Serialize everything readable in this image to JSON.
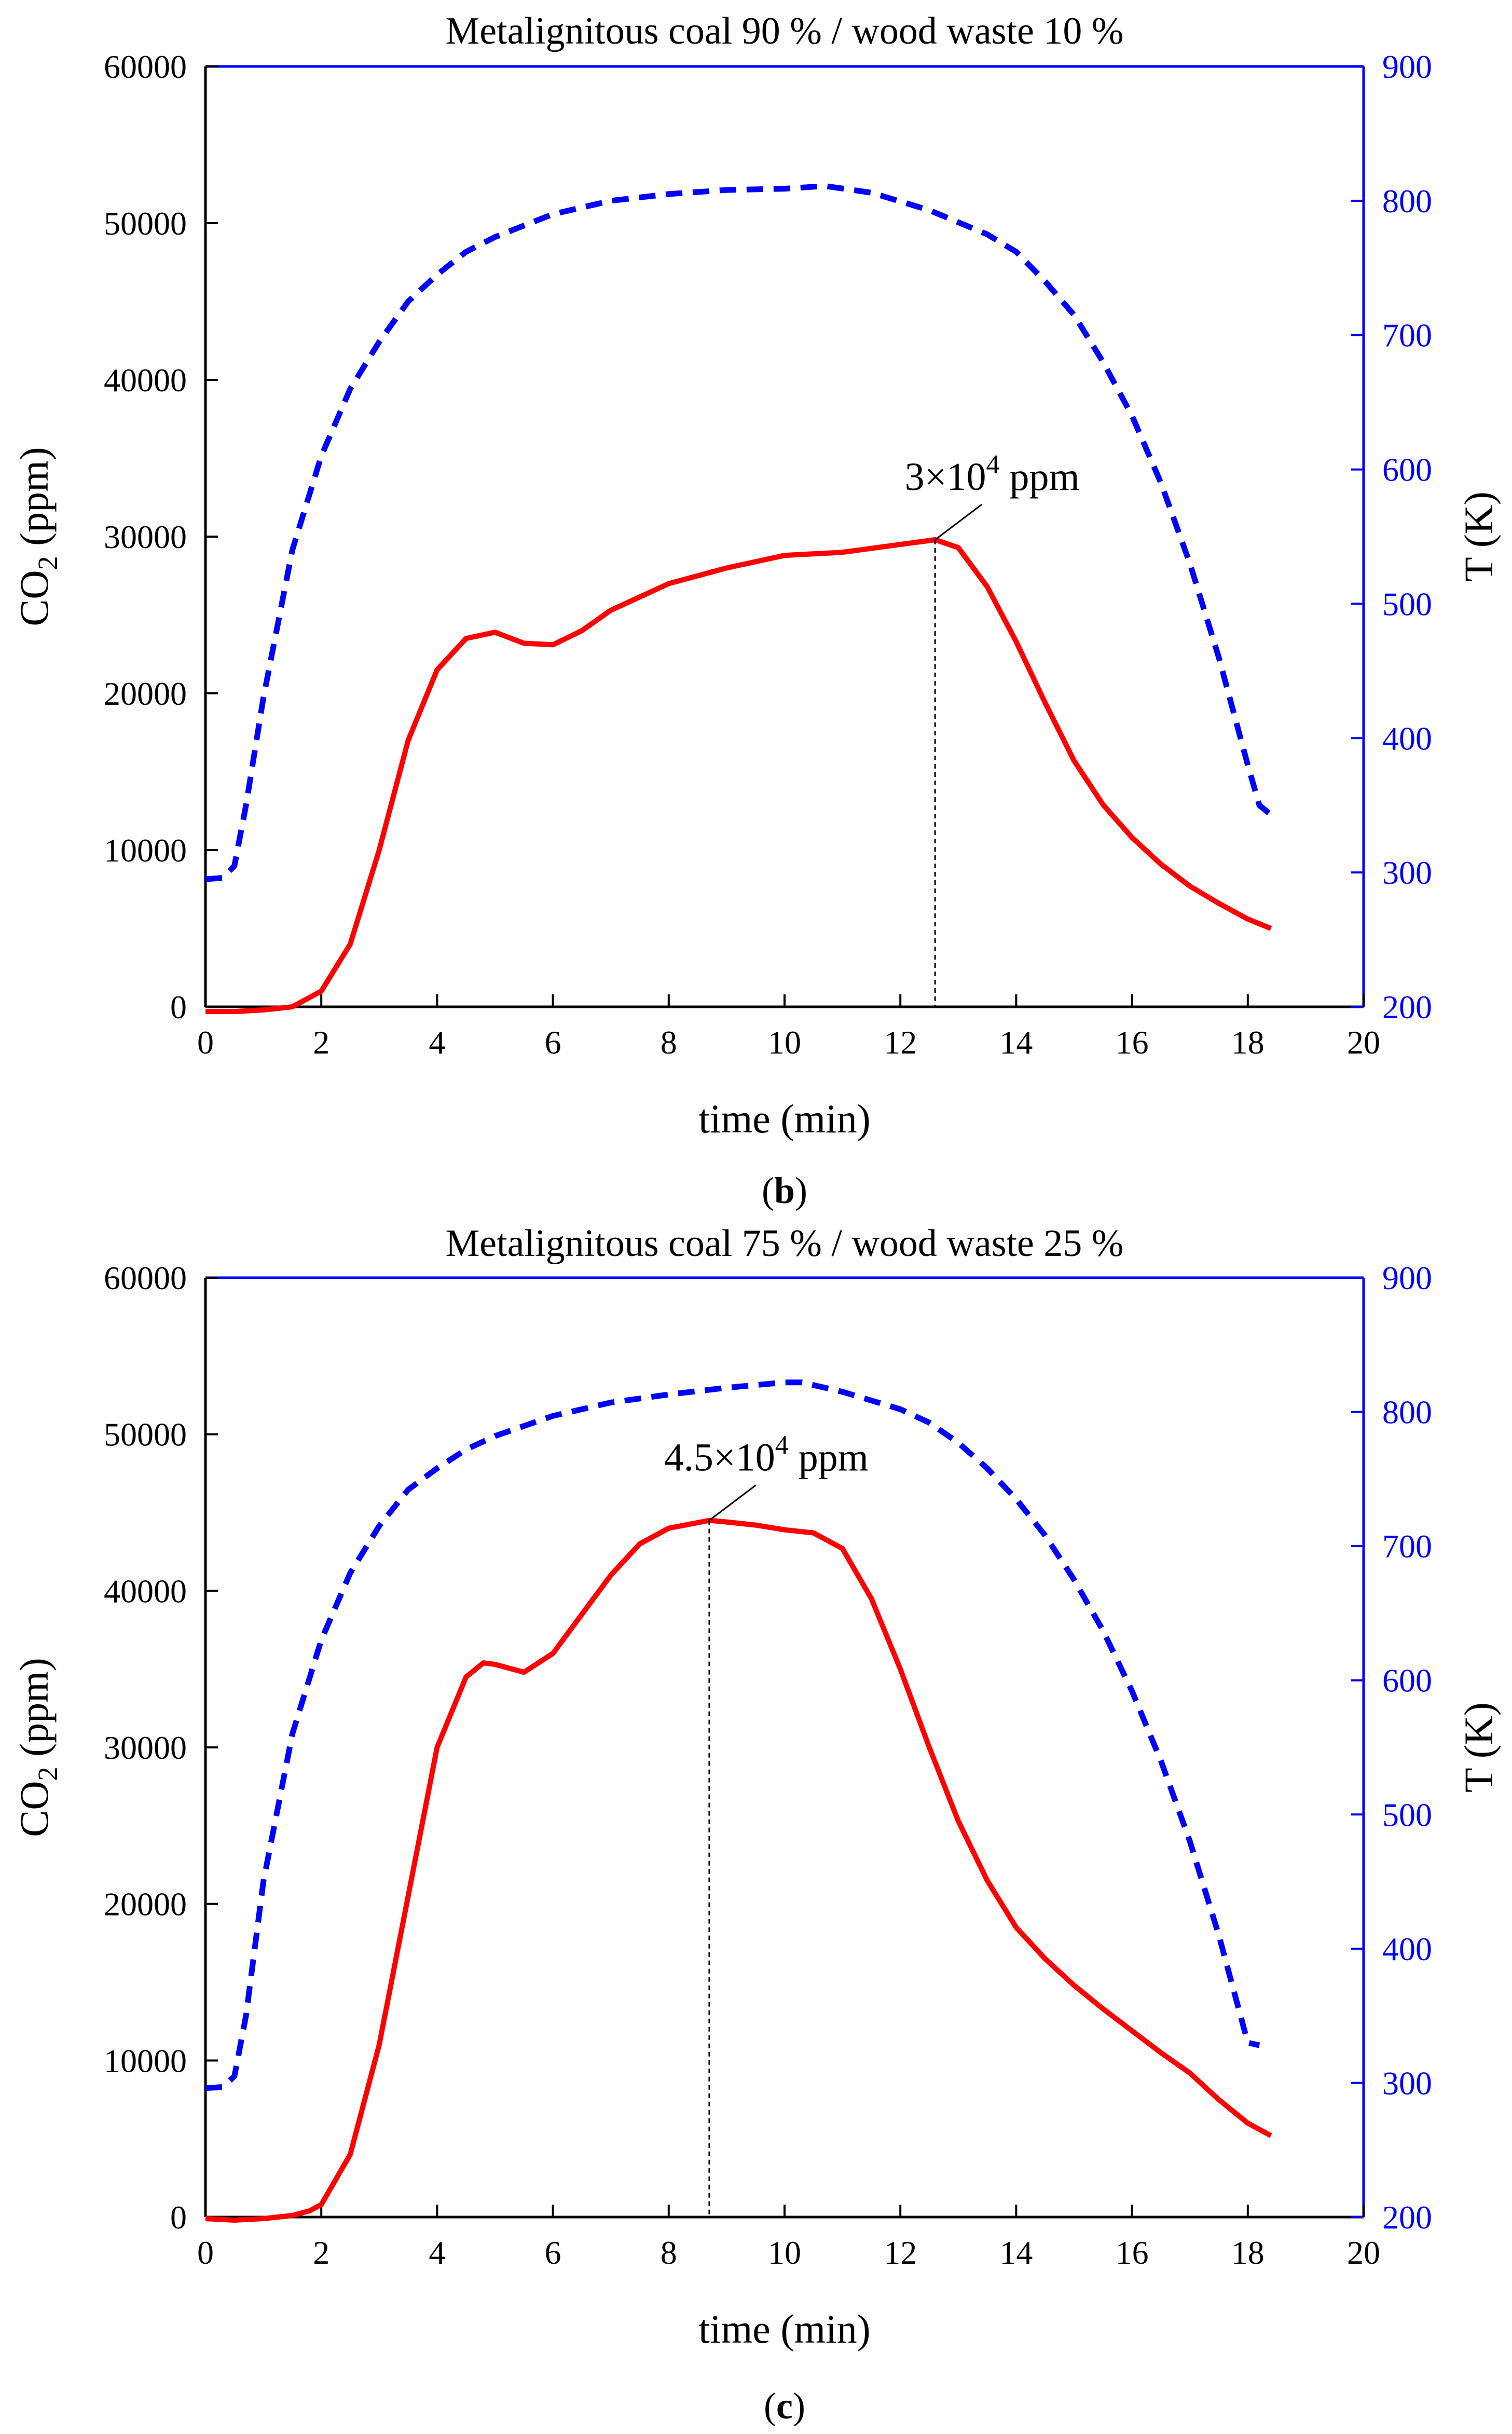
{
  "colors": {
    "co2": "#ff0000",
    "temperature": "#0000ff",
    "axis": "#000000",
    "right_axis": "#0000ff"
  },
  "chart_data": [
    {
      "type": "line",
      "panel_label": "b",
      "title": "Metalignitous coal 90 % / wood waste 10 %",
      "xlabel": "time (min)",
      "ylabel": "CO",
      "ylabel_sub": "2",
      "ylabel_tail": " (ppm)",
      "y2label": "T (K)",
      "xlim": [
        0,
        20
      ],
      "ylim": [
        0,
        60000
      ],
      "y2lim": [
        200,
        900
      ],
      "x_ticks": [
        "0",
        "2",
        "4",
        "6",
        "8",
        "10",
        "12",
        "14",
        "16",
        "18",
        "20"
      ],
      "y_ticks": [
        "0",
        "10000",
        "20000",
        "30000",
        "40000",
        "50000",
        "60000"
      ],
      "y2_ticks": [
        "200",
        "300",
        "400",
        "500",
        "600",
        "700",
        "800",
        "900"
      ],
      "annotation": {
        "base": "3×10",
        "exp": "4",
        "tail": " ppm",
        "x": 12.6,
        "y": 29800
      },
      "series": [
        {
          "axis": "left",
          "style": "solid",
          "x": [
            0,
            0.5,
            1.0,
            1.5,
            2.0,
            2.5,
            3.0,
            3.5,
            4.0,
            4.5,
            5.0,
            5.5,
            6.0,
            6.5,
            7.0,
            8.0,
            9.0,
            10.0,
            11.0,
            12.0,
            12.6,
            13.0,
            13.5,
            14.0,
            14.5,
            15.0,
            15.5,
            16.0,
            16.5,
            17.0,
            17.5,
            18.0,
            18.4
          ],
          "y": [
            -300,
            -300,
            -200,
            0,
            1000,
            4000,
            10000,
            17000,
            21500,
            23500,
            23900,
            23200,
            23100,
            24000,
            25300,
            27000,
            28000,
            28800,
            29000,
            29500,
            29800,
            29300,
            26800,
            23300,
            19400,
            15700,
            12900,
            10800,
            9100,
            7700,
            6600,
            5600,
            5000
          ]
        },
        {
          "axis": "right",
          "style": "dashed",
          "x": [
            0,
            0.3,
            0.5,
            0.7,
            1.0,
            1.5,
            2.0,
            2.5,
            3.0,
            3.5,
            4.0,
            4.5,
            5.0,
            6.0,
            7.0,
            8.0,
            9.0,
            10.0,
            10.7,
            11.5,
            12.5,
            13.5,
            14.0,
            14.5,
            15.0,
            15.5,
            16.0,
            16.5,
            17.0,
            17.5,
            18.0,
            18.2,
            18.4
          ],
          "y": [
            295,
            296,
            305,
            350,
            430,
            540,
            610,
            660,
            695,
            725,
            745,
            762,
            773,
            790,
            800,
            805,
            808,
            809,
            811,
            806,
            793,
            775,
            762,
            740,
            715,
            680,
            640,
            590,
            530,
            460,
            380,
            350,
            343
          ]
        }
      ]
    },
    {
      "type": "line",
      "panel_label": "c",
      "title": "Metalignitous coal 75 % / wood waste 25 %",
      "xlabel": "time (min)",
      "ylabel": "CO",
      "ylabel_sub": "2",
      "ylabel_tail": " (ppm)",
      "y2label": "T (K)",
      "xlim": [
        0,
        20
      ],
      "ylim": [
        0,
        60000
      ],
      "y2lim": [
        200,
        900
      ],
      "x_ticks": [
        "0",
        "2",
        "4",
        "6",
        "8",
        "10",
        "12",
        "14",
        "16",
        "18",
        "20"
      ],
      "y_ticks": [
        "0",
        "10000",
        "20000",
        "30000",
        "40000",
        "50000",
        "60000"
      ],
      "y2_ticks": [
        "200",
        "300",
        "400",
        "500",
        "600",
        "700",
        "800",
        "900"
      ],
      "annotation": {
        "base": "4.5×10",
        "exp": "4",
        "tail": " ppm",
        "x": 8.7,
        "y": 44500
      },
      "series": [
        {
          "axis": "left",
          "style": "solid",
          "x": [
            0,
            0.5,
            1.0,
            1.5,
            1.8,
            2.0,
            2.5,
            3.0,
            3.5,
            4.0,
            4.5,
            4.8,
            5.0,
            5.5,
            6.0,
            6.5,
            7.0,
            7.5,
            8.0,
            8.7,
            9.0,
            9.5,
            10.0,
            10.5,
            11.0,
            11.5,
            12.0,
            12.5,
            13.0,
            13.5,
            14.0,
            14.5,
            15.0,
            15.5,
            16.0,
            16.5,
            17.0,
            17.5,
            18.0,
            18.4
          ],
          "y": [
            -100,
            -200,
            -100,
            100,
            400,
            800,
            4000,
            11000,
            20500,
            30000,
            34500,
            35400,
            35300,
            34800,
            36000,
            38500,
            41000,
            43000,
            44000,
            44500,
            44400,
            44200,
            43900,
            43700,
            42700,
            39500,
            35000,
            30000,
            25300,
            21500,
            18500,
            16500,
            14800,
            13300,
            11900,
            10500,
            9200,
            7500,
            6000,
            5200
          ]
        },
        {
          "axis": "right",
          "style": "dashed",
          "x": [
            0,
            0.3,
            0.5,
            0.7,
            1.0,
            1.5,
            2.0,
            2.5,
            3.0,
            3.5,
            4.0,
            4.5,
            5.0,
            6.0,
            7.0,
            8.0,
            9.0,
            10.0,
            10.3,
            11.0,
            12.0,
            12.5,
            13.0,
            13.5,
            14.0,
            14.5,
            15.0,
            15.5,
            16.0,
            16.5,
            17.0,
            17.5,
            18.0,
            18.2
          ],
          "y": [
            296,
            297,
            305,
            350,
            450,
            560,
            630,
            680,
            715,
            742,
            758,
            772,
            782,
            797,
            807,
            813,
            818,
            822,
            822,
            815,
            802,
            792,
            777,
            758,
            735,
            708,
            675,
            637,
            592,
            540,
            480,
            410,
            330,
            328
          ]
        }
      ]
    }
  ]
}
